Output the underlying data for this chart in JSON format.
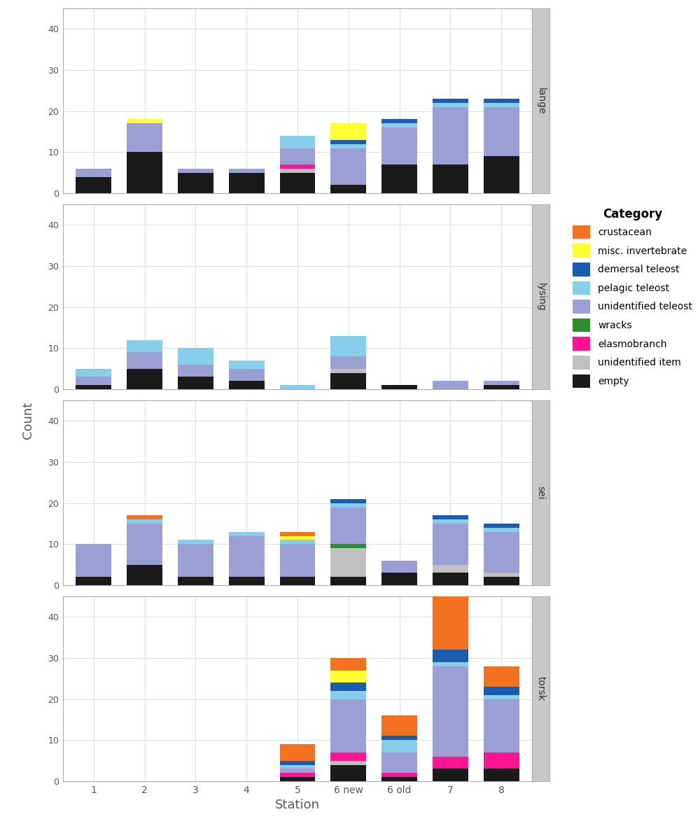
{
  "stations": [
    "1",
    "2",
    "3",
    "4",
    "5",
    "6 new",
    "6 old",
    "7",
    "8"
  ],
  "species": [
    "lange",
    "lysing",
    "sei",
    "torsk"
  ],
  "categories": [
    "empty",
    "unidentified item",
    "elasmobranch",
    "wracks",
    "unidentified teleost",
    "pelagic teleost",
    "demersal teleost",
    "misc. invertebrate",
    "crustacean"
  ],
  "legend_categories": [
    "crustacean",
    "misc. invertebrate",
    "demersal teleost",
    "pelagic teleost",
    "unidentified teleost",
    "wracks",
    "elasmobranch",
    "unidentified item",
    "empty"
  ],
  "colors": {
    "crustacean": "#F4711F",
    "misc. invertebrate": "#FFFF33",
    "demersal teleost": "#1A5CB0",
    "pelagic teleost": "#87CEEB",
    "unidentified teleost": "#9B9FD4",
    "wracks": "#2E8B2E",
    "elasmobranch": "#FF1493",
    "unidentified item": "#C0C0C0",
    "empty": "#1A1A1A"
  },
  "data": {
    "lange": {
      "1": {
        "crustacean": 0,
        "misc. invertebrate": 0,
        "demersal teleost": 0,
        "pelagic teleost": 0,
        "unidentified teleost": 2,
        "wracks": 0,
        "elasmobranch": 0,
        "unidentified item": 0,
        "empty": 4
      },
      "2": {
        "crustacean": 0,
        "misc. invertebrate": 1,
        "demersal teleost": 0,
        "pelagic teleost": 0,
        "unidentified teleost": 7,
        "wracks": 0,
        "elasmobranch": 0,
        "unidentified item": 0,
        "empty": 10
      },
      "3": {
        "crustacean": 0,
        "misc. invertebrate": 0,
        "demersal teleost": 0,
        "pelagic teleost": 0,
        "unidentified teleost": 1,
        "wracks": 0,
        "elasmobranch": 0,
        "unidentified item": 0,
        "empty": 5
      },
      "4": {
        "crustacean": 0,
        "misc. invertebrate": 0,
        "demersal teleost": 0,
        "pelagic teleost": 0,
        "unidentified teleost": 1,
        "wracks": 0,
        "elasmobranch": 0,
        "unidentified item": 0,
        "empty": 5
      },
      "5": {
        "crustacean": 0,
        "misc. invertebrate": 0,
        "demersal teleost": 0,
        "pelagic teleost": 3,
        "unidentified teleost": 4,
        "wracks": 0,
        "elasmobranch": 1,
        "unidentified item": 1,
        "empty": 5
      },
      "6 new": {
        "crustacean": 0,
        "misc. invertebrate": 4,
        "demersal teleost": 1,
        "pelagic teleost": 1,
        "unidentified teleost": 9,
        "wracks": 0,
        "elasmobranch": 0,
        "unidentified item": 0,
        "empty": 2
      },
      "6 old": {
        "crustacean": 0,
        "misc. invertebrate": 0,
        "demersal teleost": 1,
        "pelagic teleost": 1,
        "unidentified teleost": 9,
        "wracks": 0,
        "elasmobranch": 0,
        "unidentified item": 0,
        "empty": 7
      },
      "7": {
        "crustacean": 0,
        "misc. invertebrate": 0,
        "demersal teleost": 1,
        "pelagic teleost": 1,
        "unidentified teleost": 14,
        "wracks": 0,
        "elasmobranch": 0,
        "unidentified item": 0,
        "empty": 7
      },
      "8": {
        "crustacean": 0,
        "misc. invertebrate": 0,
        "demersal teleost": 1,
        "pelagic teleost": 1,
        "unidentified teleost": 12,
        "wracks": 0,
        "elasmobranch": 0,
        "unidentified item": 0,
        "empty": 9
      }
    },
    "lysing": {
      "1": {
        "crustacean": 0,
        "misc. invertebrate": 0,
        "demersal teleost": 0,
        "pelagic teleost": 2,
        "unidentified teleost": 2,
        "wracks": 0,
        "elasmobranch": 0,
        "unidentified item": 0,
        "empty": 1
      },
      "2": {
        "crustacean": 0,
        "misc. invertebrate": 0,
        "demersal teleost": 0,
        "pelagic teleost": 3,
        "unidentified teleost": 4,
        "wracks": 0,
        "elasmobranch": 0,
        "unidentified item": 0,
        "empty": 5
      },
      "3": {
        "crustacean": 0,
        "misc. invertebrate": 0,
        "demersal teleost": 0,
        "pelagic teleost": 4,
        "unidentified teleost": 3,
        "wracks": 0,
        "elasmobranch": 0,
        "unidentified item": 0,
        "empty": 3
      },
      "4": {
        "crustacean": 0,
        "misc. invertebrate": 0,
        "demersal teleost": 0,
        "pelagic teleost": 2,
        "unidentified teleost": 3,
        "wracks": 0,
        "elasmobranch": 0,
        "unidentified item": 0,
        "empty": 2
      },
      "5": {
        "crustacean": 0,
        "misc. invertebrate": 0,
        "demersal teleost": 0,
        "pelagic teleost": 1,
        "unidentified teleost": 0,
        "wracks": 0,
        "elasmobranch": 0,
        "unidentified item": 0,
        "empty": 0
      },
      "6 new": {
        "crustacean": 0,
        "misc. invertebrate": 0,
        "demersal teleost": 0,
        "pelagic teleost": 5,
        "unidentified teleost": 3,
        "wracks": 0,
        "elasmobranch": 0,
        "unidentified item": 1,
        "empty": 4
      },
      "6 old": {
        "crustacean": 0,
        "misc. invertebrate": 0,
        "demersal teleost": 0,
        "pelagic teleost": 0,
        "unidentified teleost": 0,
        "wracks": 0,
        "elasmobranch": 0,
        "unidentified item": 0,
        "empty": 1
      },
      "7": {
        "crustacean": 0,
        "misc. invertebrate": 0,
        "demersal teleost": 0,
        "pelagic teleost": 0,
        "unidentified teleost": 2,
        "wracks": 0,
        "elasmobranch": 0,
        "unidentified item": 0,
        "empty": 0
      },
      "8": {
        "crustacean": 0,
        "misc. invertebrate": 0,
        "demersal teleost": 0,
        "pelagic teleost": 0,
        "unidentified teleost": 1,
        "wracks": 0,
        "elasmobranch": 0,
        "unidentified item": 0,
        "empty": 1
      }
    },
    "sei": {
      "1": {
        "crustacean": 0,
        "misc. invertebrate": 0,
        "demersal teleost": 0,
        "pelagic teleost": 0,
        "unidentified teleost": 8,
        "wracks": 0,
        "elasmobranch": 0,
        "unidentified item": 0,
        "empty": 2
      },
      "2": {
        "crustacean": 1,
        "misc. invertebrate": 0,
        "demersal teleost": 0,
        "pelagic teleost": 1,
        "unidentified teleost": 10,
        "wracks": 0,
        "elasmobranch": 0,
        "unidentified item": 0,
        "empty": 5
      },
      "3": {
        "crustacean": 0,
        "misc. invertebrate": 0,
        "demersal teleost": 0,
        "pelagic teleost": 1,
        "unidentified teleost": 8,
        "wracks": 0,
        "elasmobranch": 0,
        "unidentified item": 0,
        "empty": 2
      },
      "4": {
        "crustacean": 0,
        "misc. invertebrate": 0,
        "demersal teleost": 0,
        "pelagic teleost": 1,
        "unidentified teleost": 10,
        "wracks": 0,
        "elasmobranch": 0,
        "unidentified item": 0,
        "empty": 2
      },
      "5": {
        "crustacean": 1,
        "misc. invertebrate": 1,
        "demersal teleost": 0,
        "pelagic teleost": 1,
        "unidentified teleost": 8,
        "wracks": 0,
        "elasmobranch": 0,
        "unidentified item": 0,
        "empty": 2
      },
      "6 new": {
        "crustacean": 0,
        "misc. invertebrate": 0,
        "demersal teleost": 1,
        "pelagic teleost": 1,
        "unidentified teleost": 9,
        "wracks": 1,
        "elasmobranch": 0,
        "unidentified item": 7,
        "empty": 2
      },
      "6 old": {
        "crustacean": 0,
        "misc. invertebrate": 0,
        "demersal teleost": 0,
        "pelagic teleost": 0,
        "unidentified teleost": 3,
        "wracks": 0,
        "elasmobranch": 0,
        "unidentified item": 0,
        "empty": 3
      },
      "7": {
        "crustacean": 0,
        "misc. invertebrate": 0,
        "demersal teleost": 1,
        "pelagic teleost": 1,
        "unidentified teleost": 10,
        "wracks": 0,
        "elasmobranch": 0,
        "unidentified item": 2,
        "empty": 3
      },
      "8": {
        "crustacean": 0,
        "misc. invertebrate": 0,
        "demersal teleost": 1,
        "pelagic teleost": 1,
        "unidentified teleost": 10,
        "wracks": 0,
        "elasmobranch": 0,
        "unidentified item": 1,
        "empty": 2
      }
    },
    "torsk": {
      "1": {
        "crustacean": 0,
        "misc. invertebrate": 0,
        "demersal teleost": 0,
        "pelagic teleost": 0,
        "unidentified teleost": 0,
        "wracks": 0,
        "elasmobranch": 0,
        "unidentified item": 0,
        "empty": 0
      },
      "2": {
        "crustacean": 0,
        "misc. invertebrate": 0,
        "demersal teleost": 0,
        "pelagic teleost": 0,
        "unidentified teleost": 0,
        "wracks": 0,
        "elasmobranch": 0,
        "unidentified item": 0,
        "empty": 0
      },
      "3": {
        "crustacean": 0,
        "misc. invertebrate": 0,
        "demersal teleost": 0,
        "pelagic teleost": 0,
        "unidentified teleost": 0,
        "wracks": 0,
        "elasmobranch": 0,
        "unidentified item": 0,
        "empty": 0
      },
      "4": {
        "crustacean": 0,
        "misc. invertebrate": 0,
        "demersal teleost": 0,
        "pelagic teleost": 0,
        "unidentified teleost": 0,
        "wracks": 0,
        "elasmobranch": 0,
        "unidentified item": 0,
        "empty": 0
      },
      "5": {
        "crustacean": 4,
        "misc. invertebrate": 0,
        "demersal teleost": 1,
        "pelagic teleost": 1,
        "unidentified teleost": 1,
        "wracks": 0,
        "elasmobranch": 1,
        "unidentified item": 0,
        "empty": 1
      },
      "6 new": {
        "crustacean": 3,
        "misc. invertebrate": 3,
        "demersal teleost": 2,
        "pelagic teleost": 2,
        "unidentified teleost": 13,
        "wracks": 0,
        "elasmobranch": 2,
        "unidentified item": 1,
        "empty": 4
      },
      "6 old": {
        "crustacean": 5,
        "misc. invertebrate": 0,
        "demersal teleost": 1,
        "pelagic teleost": 3,
        "unidentified teleost": 5,
        "wracks": 0,
        "elasmobranch": 1,
        "unidentified item": 0,
        "empty": 1
      },
      "7": {
        "crustacean": 15,
        "misc. invertebrate": 0,
        "demersal teleost": 3,
        "pelagic teleost": 1,
        "unidentified teleost": 22,
        "wracks": 0,
        "elasmobranch": 3,
        "unidentified item": 0,
        "empty": 3
      },
      "8": {
        "crustacean": 5,
        "misc. invertebrate": 0,
        "demersal teleost": 2,
        "pelagic teleost": 1,
        "unidentified teleost": 13,
        "wracks": 0,
        "elasmobranch": 4,
        "unidentified item": 0,
        "empty": 3
      }
    }
  },
  "xlabel": "Station",
  "ylabel": "Count",
  "ylim": [
    0,
    45
  ],
  "plot_bg": "#FFFFFF",
  "fig_bg": "#FFFFFF",
  "grid_color": "#DDDDDD",
  "strip_bg": "#C8C8C8",
  "strip_text_color": "#333333",
  "axis_text_color": "#555555",
  "bar_width": 0.7
}
